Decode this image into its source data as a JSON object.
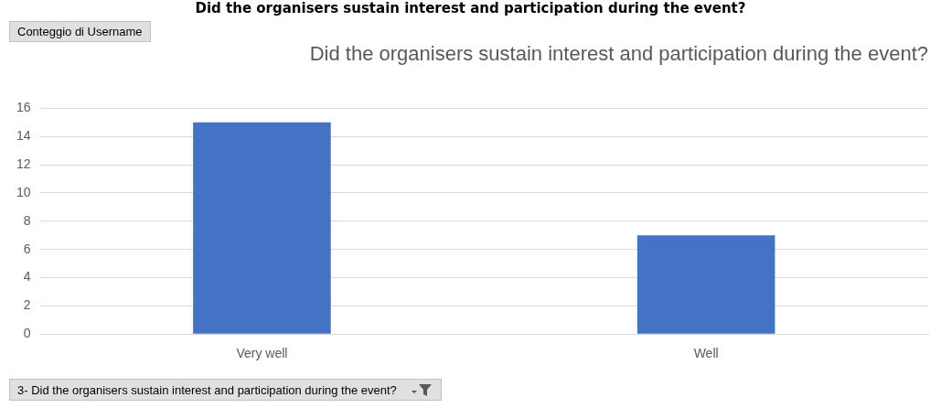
{
  "chart_data": {
    "type": "bar",
    "title": "Did the organisers sustain interest and participation during the event?",
    "categories": [
      "Very well",
      "Well"
    ],
    "values": [
      15,
      7
    ],
    "color": "#4472c4",
    "ylim": [
      0,
      16
    ],
    "yticks": [
      0,
      2,
      4,
      6,
      8,
      10,
      12,
      14,
      16
    ],
    "grid": "y",
    "legend": false,
    "annotations": [
      "Did the organisers sustain interest and participation during the event?",
      "Conteggio di Username",
      "3- Did the organisers sustain interest and participation during the event?"
    ]
  }
}
